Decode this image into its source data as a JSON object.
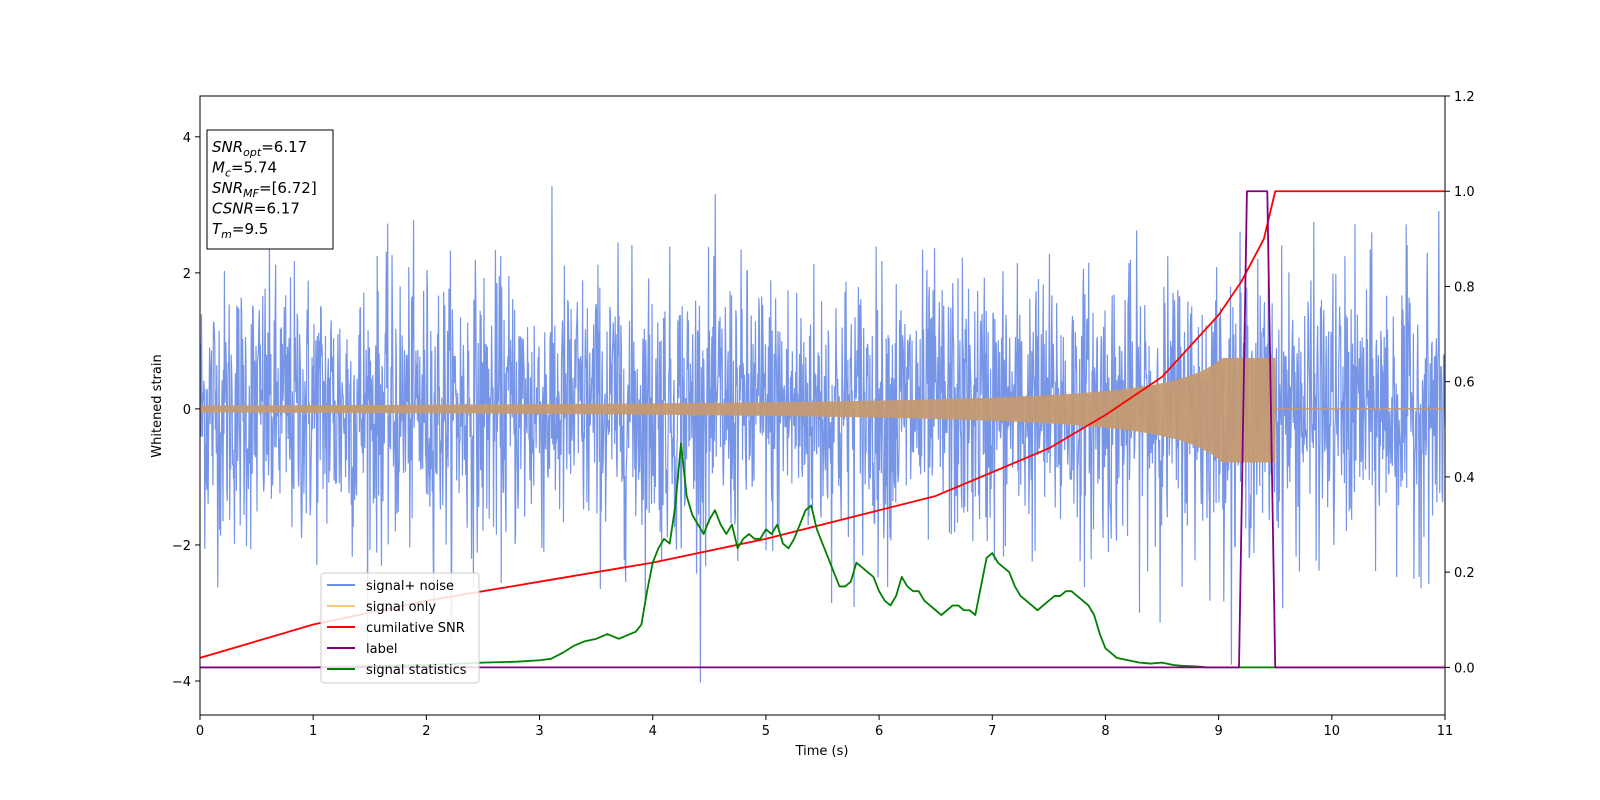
{
  "chart_data": {
    "type": "line",
    "xlabel": "Time (s)",
    "ylabel": "Whitened strain",
    "xlim": [
      0,
      11
    ],
    "ylim_left": [
      -4.5,
      4.6
    ],
    "ylim_right": [
      -0.1,
      1.2
    ],
    "xticks": [
      "0",
      "1",
      "2",
      "3",
      "4",
      "5",
      "6",
      "7",
      "8",
      "9",
      "10",
      "11"
    ],
    "yticks_left": [
      "−4",
      "−2",
      "0",
      "2",
      "4"
    ],
    "yticks_right": [
      "0.0",
      "0.2",
      "0.4",
      "0.6",
      "0.8",
      "1.0",
      "1.2"
    ],
    "grid": false,
    "legend_position": "lower-left",
    "info_box": {
      "lines": [
        {
          "main": "SNR",
          "sub": "opt",
          "value": "=6.17"
        },
        {
          "main": "M",
          "sub": "c",
          "value": "=5.74"
        },
        {
          "main": "SNR",
          "sub": "MF",
          "value": "=[6.72]"
        },
        {
          "main": "CSNR",
          "sub": "",
          "value": "=6.17"
        },
        {
          "main": "T",
          "sub": "m",
          "value": "=9.5"
        }
      ]
    },
    "series": [
      {
        "name": "signal+ noise",
        "axis": "left",
        "color": "#6f8fe6",
        "noise_sigma": 1.0,
        "extent": [
          0,
          11
        ]
      },
      {
        "name": "signal only",
        "axis": "left",
        "color": "#f5b041",
        "fill_color": "#c49a72",
        "amplitude_start": 0.05,
        "amplitude_peak": 0.75,
        "merger_time": 9.5,
        "extent": [
          0,
          11
        ]
      },
      {
        "name": "cumilative SNR",
        "axis": "right",
        "color": "#ff0000",
        "x": [
          0,
          1,
          2,
          3,
          4,
          5,
          5.5,
          6,
          6.5,
          7,
          7.5,
          8,
          8.5,
          9,
          9.2,
          9.4,
          9.5,
          11
        ],
        "y": [
          0.02,
          0.09,
          0.14,
          0.18,
          0.22,
          0.27,
          0.3,
          0.33,
          0.36,
          0.41,
          0.46,
          0.53,
          0.61,
          0.74,
          0.81,
          0.9,
          1.0,
          1.0
        ]
      },
      {
        "name": "label",
        "axis": "right",
        "color": "#800080",
        "x": [
          0,
          9.18,
          9.25,
          9.43,
          9.5,
          11
        ],
        "y": [
          0,
          0,
          1,
          1,
          0,
          0
        ]
      },
      {
        "name": "signal statistics",
        "axis": "right",
        "color": "#008000",
        "x": [
          0,
          1,
          2,
          2.5,
          2.8,
          3.0,
          3.1,
          3.2,
          3.3,
          3.4,
          3.5,
          3.6,
          3.65,
          3.7,
          3.75,
          3.8,
          3.85,
          3.9,
          3.95,
          4.0,
          4.05,
          4.1,
          4.15,
          4.2,
          4.25,
          4.3,
          4.35,
          4.4,
          4.45,
          4.5,
          4.55,
          4.6,
          4.65,
          4.7,
          4.75,
          4.8,
          4.85,
          4.9,
          4.95,
          5.0,
          5.05,
          5.1,
          5.15,
          5.2,
          5.25,
          5.3,
          5.35,
          5.4,
          5.45,
          5.5,
          5.55,
          5.6,
          5.65,
          5.7,
          5.75,
          5.8,
          5.85,
          5.9,
          5.95,
          6.0,
          6.05,
          6.1,
          6.15,
          6.2,
          6.25,
          6.3,
          6.35,
          6.4,
          6.45,
          6.5,
          6.55,
          6.6,
          6.65,
          6.7,
          6.75,
          6.8,
          6.85,
          6.9,
          6.95,
          7.0,
          7.05,
          7.1,
          7.15,
          7.2,
          7.25,
          7.3,
          7.35,
          7.4,
          7.45,
          7.5,
          7.55,
          7.6,
          7.65,
          7.7,
          7.75,
          7.8,
          7.85,
          7.9,
          7.95,
          8.0,
          8.1,
          8.2,
          8.3,
          8.4,
          8.5,
          8.6,
          8.7,
          8.8,
          8.9,
          9.0,
          9.2,
          10,
          11
        ],
        "y": [
          0.0,
          0.0,
          0.005,
          0.01,
          0.012,
          0.015,
          0.018,
          0.03,
          0.045,
          0.055,
          0.06,
          0.07,
          0.065,
          0.06,
          0.065,
          0.07,
          0.075,
          0.09,
          0.16,
          0.22,
          0.25,
          0.27,
          0.26,
          0.34,
          0.47,
          0.36,
          0.32,
          0.3,
          0.28,
          0.31,
          0.33,
          0.3,
          0.28,
          0.3,
          0.25,
          0.27,
          0.28,
          0.27,
          0.27,
          0.29,
          0.28,
          0.3,
          0.26,
          0.25,
          0.27,
          0.3,
          0.33,
          0.34,
          0.29,
          0.26,
          0.23,
          0.2,
          0.17,
          0.17,
          0.18,
          0.22,
          0.21,
          0.2,
          0.19,
          0.16,
          0.14,
          0.13,
          0.15,
          0.19,
          0.17,
          0.16,
          0.16,
          0.14,
          0.13,
          0.12,
          0.11,
          0.12,
          0.13,
          0.13,
          0.12,
          0.12,
          0.11,
          0.17,
          0.23,
          0.24,
          0.22,
          0.21,
          0.2,
          0.17,
          0.15,
          0.14,
          0.13,
          0.12,
          0.13,
          0.14,
          0.15,
          0.15,
          0.16,
          0.16,
          0.15,
          0.14,
          0.13,
          0.11,
          0.07,
          0.04,
          0.02,
          0.015,
          0.01,
          0.008,
          0.01,
          0.005,
          0.003,
          0.002,
          0.0,
          0.0,
          0.0,
          0.0,
          0.0
        ]
      }
    ]
  }
}
